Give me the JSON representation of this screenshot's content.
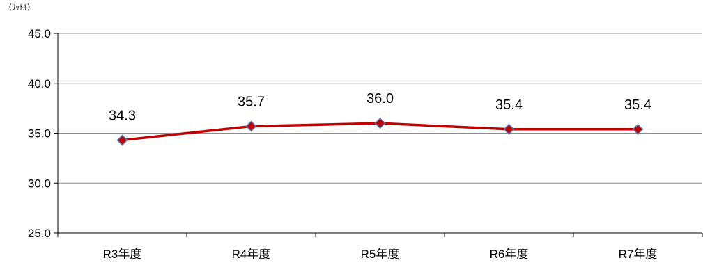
{
  "chart_data": {
    "type": "line",
    "title": "",
    "xlabel": "",
    "ylabel": "（ﾘｯﾄﾙ）",
    "categories": [
      "R3年度",
      "R4年度",
      "R5年度",
      "R6年度",
      "R7年度"
    ],
    "series": [
      {
        "values": [
          34.3,
          35.7,
          36.0,
          35.4,
          35.4
        ],
        "color": "#c00000",
        "marker_color": "#4f81bd"
      }
    ],
    "data_labels": [
      "34.3",
      "35.7",
      "36.0",
      "35.4",
      "35.4"
    ],
    "ylim": [
      25.0,
      45.0
    ],
    "yticks": [
      "25.0",
      "30.0",
      "35.0",
      "40.0",
      "45.0"
    ],
    "grid": true,
    "legend": "none"
  }
}
